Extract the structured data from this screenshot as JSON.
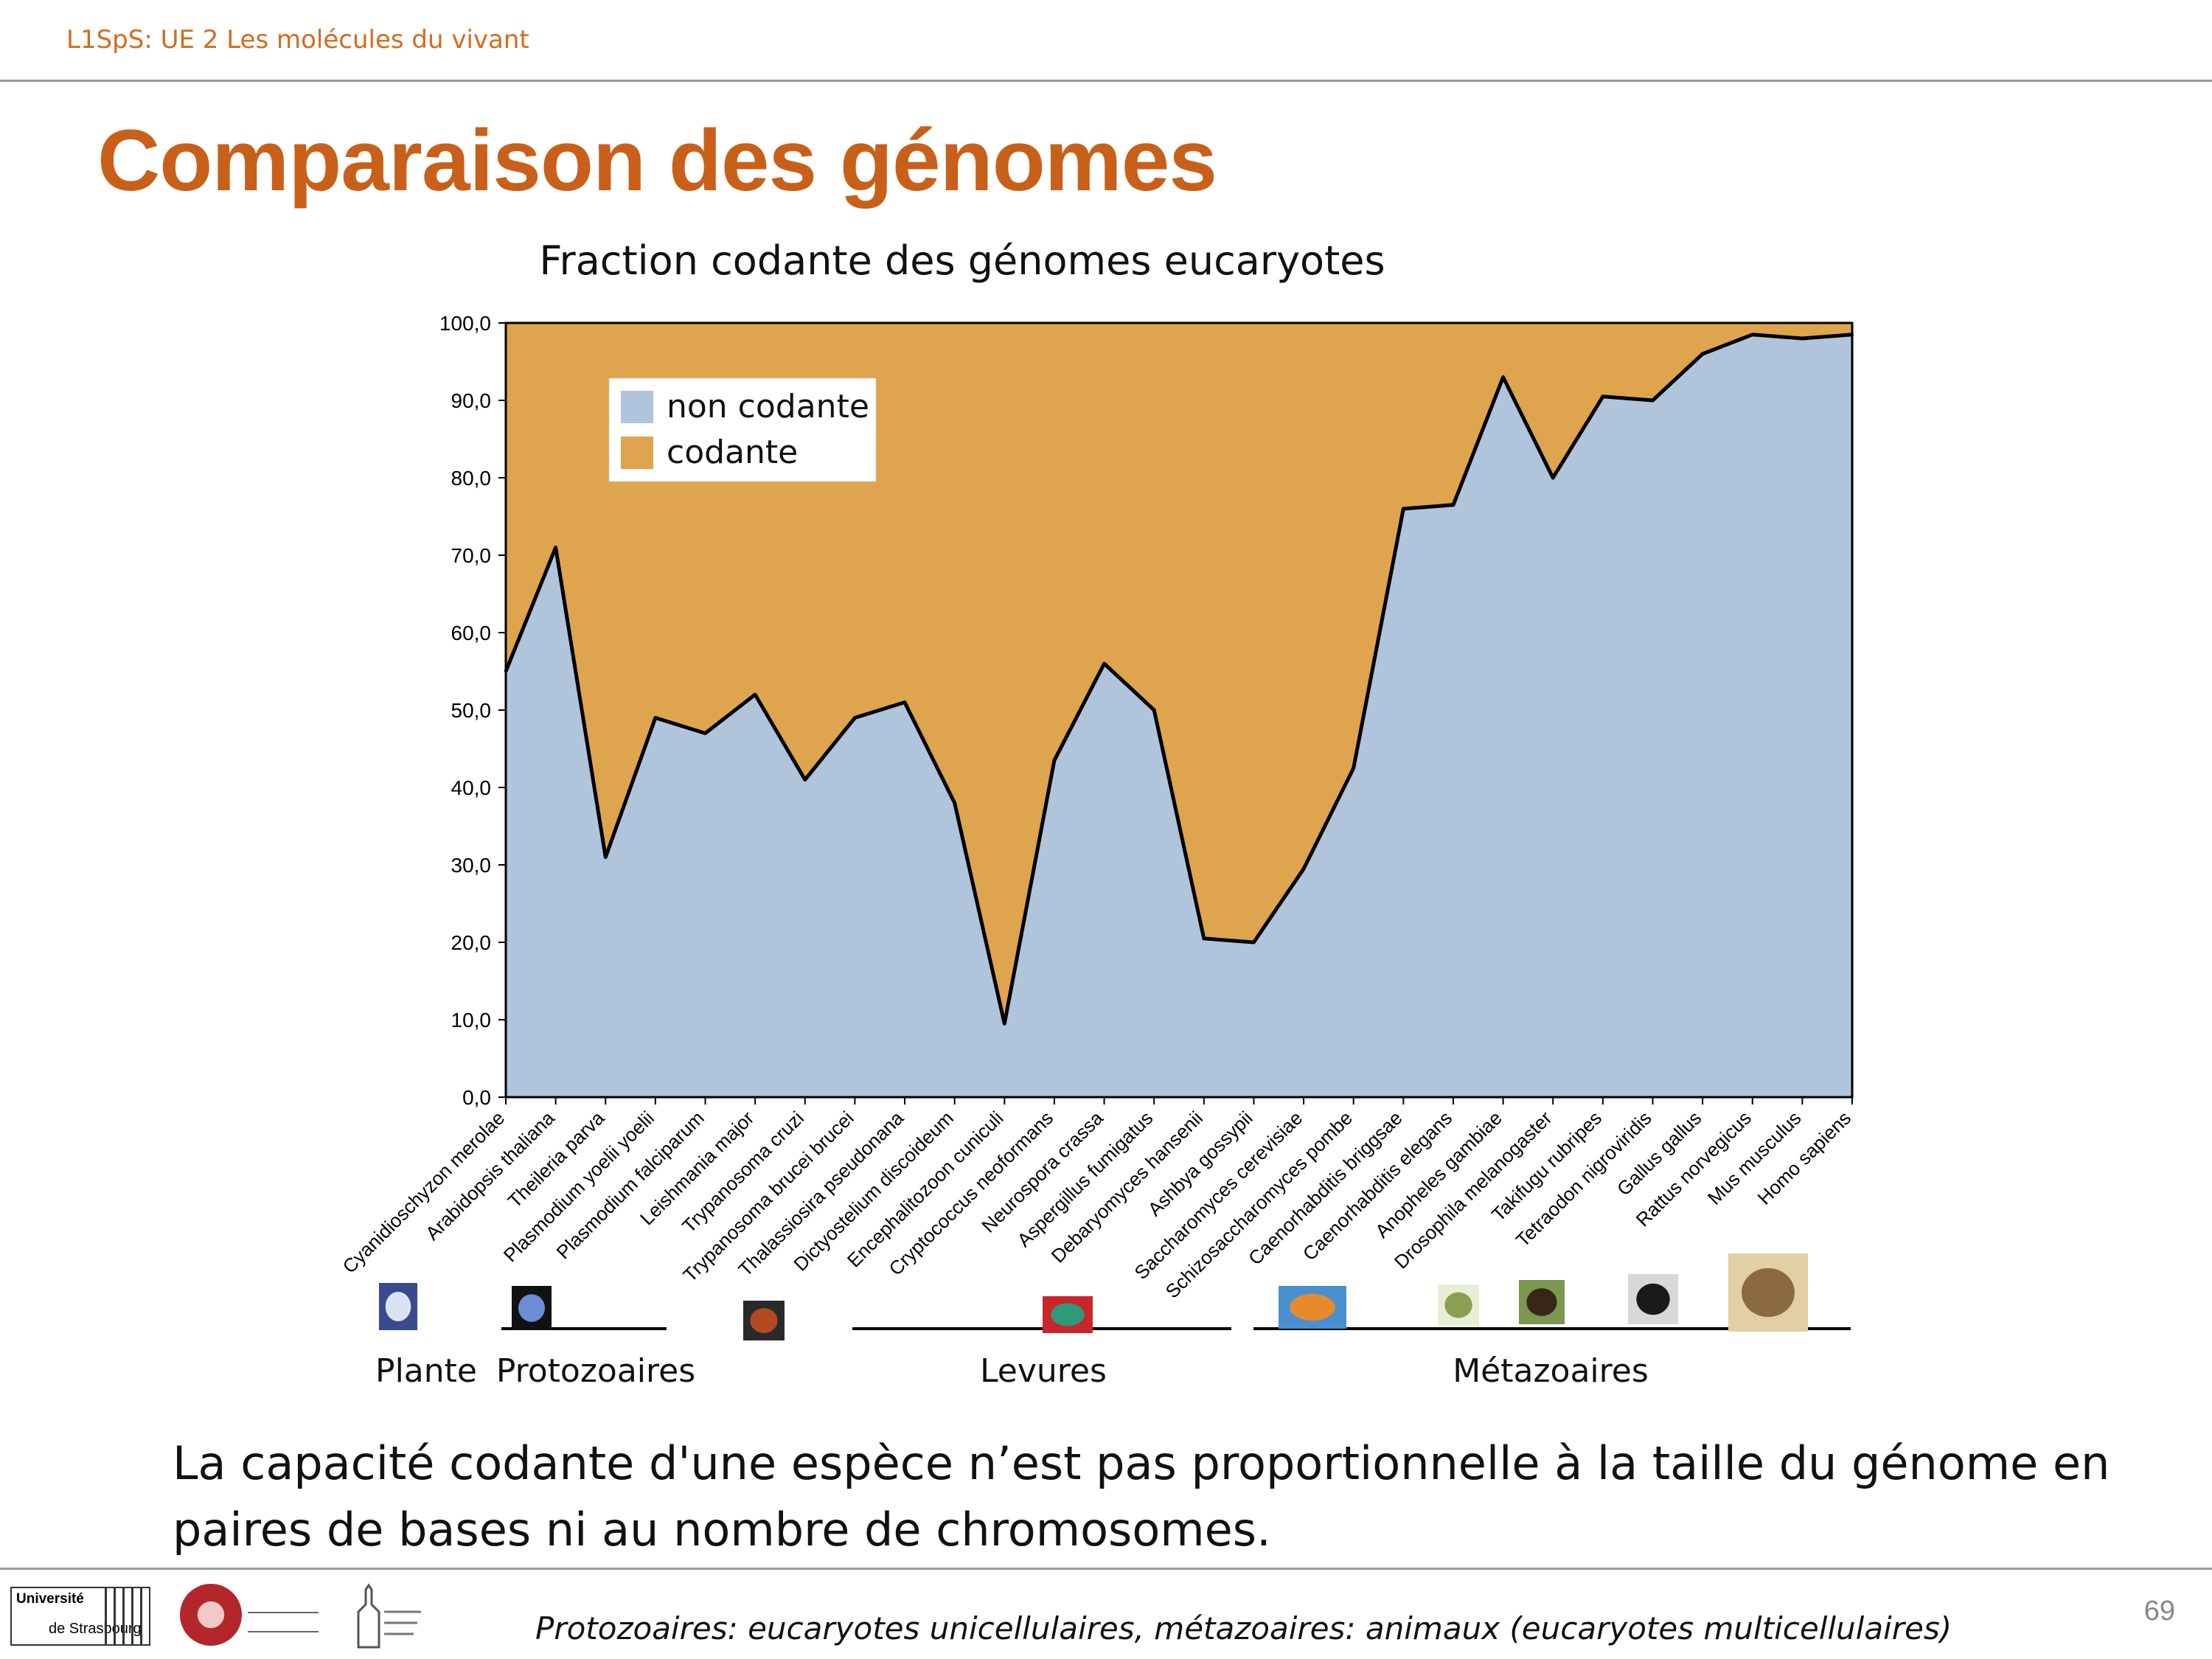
{
  "header": {
    "course": "L1SpS: UE 2 Les molécules du vivant",
    "title": "Comparaison des génomes"
  },
  "chart_data": {
    "type": "area",
    "title": "Fraction codante des génomes eucaryotes",
    "ylim": [
      0,
      100
    ],
    "yticks": [
      "0,0",
      "10,0",
      "20,0",
      "30,0",
      "40,0",
      "50,0",
      "60,0",
      "70,0",
      "80,0",
      "90,0",
      "100,0"
    ],
    "grid": false,
    "legend_position": "top-left",
    "categories": [
      "Cyanidioschyzon merolae",
      "Arabidopsis thaliana",
      "Theileria parva",
      "Plasmodium yoelii yoelii",
      "Plasmodium falciparum",
      "Leishmania major",
      "Trypanosoma cruzi",
      "Trypanosoma brucei brucei",
      "Thalassiosira pseudonana",
      "Dictyostelium discoideum",
      "Encephalitozoon cuniculi",
      "Cryptococcus neoformans",
      "Neurospora crassa",
      "Aspergillus fumigatus",
      "Debaryomyces hansenii",
      "Ashbya gossypii",
      "Saccharomyces cerevisiae",
      "Schizosaccharomyces pombe",
      "Caenorhabditis briggsae",
      "Caenorhabditis elegans",
      "Anopheles gambiae",
      "Drosophila melanogaster",
      "Takifugu rubripes",
      "Tetraodon nigroviridis",
      "Gallus gallus",
      "Rattus norvegicus",
      "Mus musculus",
      "Homo sapiens"
    ],
    "series": [
      {
        "name": "non codante",
        "color": "#b0c4dc",
        "values": [
          55,
          71,
          31,
          49,
          47,
          52,
          41,
          49,
          51,
          38,
          9.5,
          43.5,
          56,
          50,
          20.5,
          20,
          29.5,
          42.5,
          76,
          76.5,
          93,
          80,
          90.5,
          90,
          96,
          98.5,
          98,
          98.5
        ]
      },
      {
        "name": "codante",
        "color": "#dea54e",
        "values": [
          45,
          29,
          69,
          51,
          53,
          48,
          59,
          51,
          49,
          62,
          90.5,
          56.5,
          44,
          50,
          79.5,
          80,
          70.5,
          57.5,
          24,
          23.5,
          7,
          20,
          9.5,
          10,
          4,
          1.5,
          2,
          1.5
        ]
      }
    ],
    "groups": [
      {
        "label": "Plante",
        "icon": "flower-icon"
      },
      {
        "label": "Protozoaires",
        "icon": "protozoa-icon"
      },
      {
        "label": "Levures",
        "icon": "yeast-icon"
      },
      {
        "label": "Métazoaires",
        "icon": "animal-icons"
      }
    ]
  },
  "statement": "La capacité codante d'une espèce n’est pas proportionnelle à la taille du génome en paires de bases ni au nombre de chromosomes.",
  "footer": {
    "note": "Protozoaires: eucaryotes unicellulaires, métazoaires: animaux (eucaryotes multicellulaires)",
    "page": "69",
    "logo_university": "Université",
    "logo_city": "de Strasbourg"
  }
}
